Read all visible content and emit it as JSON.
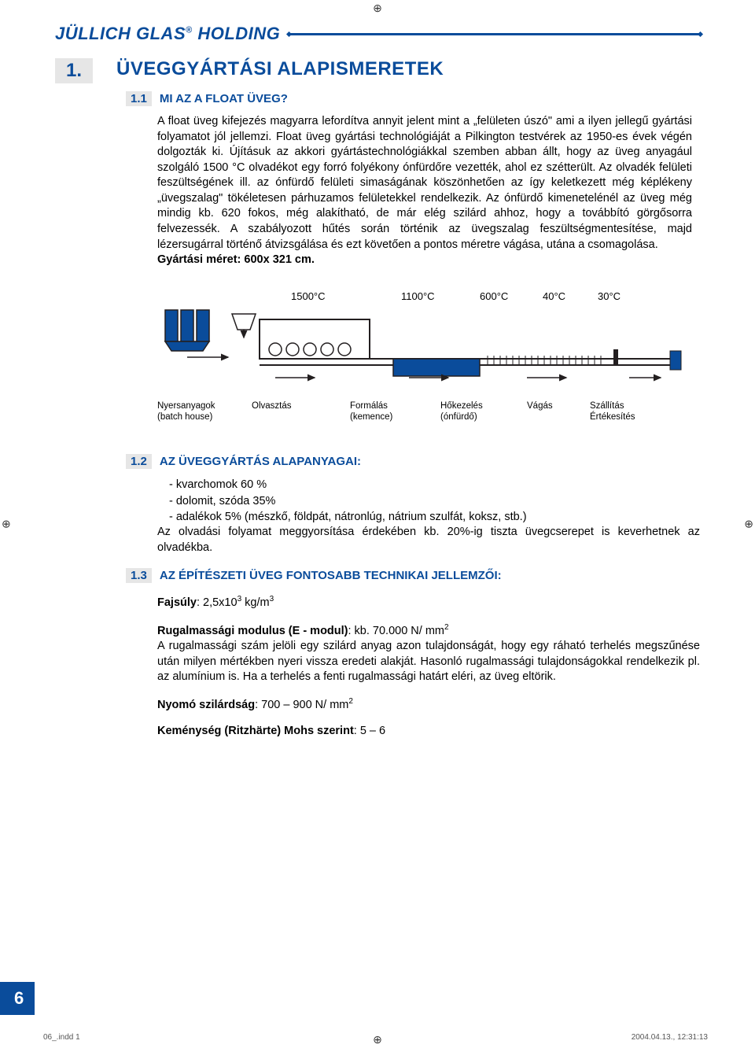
{
  "colors": {
    "brand_blue": "#0a4c9b",
    "grey_box": "#e6e6e6",
    "diagram_fill": "#0a4c9b",
    "diagram_stroke": "#000000",
    "text": "#000000",
    "bg": "#ffffff"
  },
  "header": {
    "brand": "JÜLLICH GLAS",
    "brand_sup": "®",
    "brand_suffix": " HOLDING"
  },
  "chapter": {
    "num": "1.",
    "title": "ÜVEGGYÁRTÁSI ALAPISMERETEK"
  },
  "s11": {
    "num": "1.1",
    "title": "MI AZ A FLOAT ÜVEG?",
    "para": "A float üveg kifejezés magyarra lefordítva annyit jelent mint a „felületen úszó\" ami a ilyen jellegű gyártási folyamatot jól jellemzi. Float üveg gyártási technológiáját a Pilkington testvérek az 1950-es évek végén dolgozták ki. Újításuk az akkori gyártástechnológiákkal szemben abban állt, hogy az üveg anyagául szolgáló 1500 °C olvadékot egy forró folyékony ónfürdőre vezették, ahol ez szétterült. Az olvadék felületi feszültségének ill. az ónfürdő felületi simaságának köszönhetően az így keletkezett még képlékeny „üvegszalag\" tökéletesen párhuzamos felületekkel rendelkezik. Az ónfürdő kimenetelénél az üveg még mindig kb. 620 fokos, még alakítható, de már elég szilárd ahhoz, hogy a továbbító görgősorra felvezessék. A szabályozott hűtés során történik az üvegszalag feszültségmentesítése, majd lézersugárral történő átvizsgálása és ezt követően a  pontos méretre vágása, utána a csomagolása.",
    "bold_line": "Gyártási méret: 600x 321 cm."
  },
  "diagram": {
    "type": "process-flow",
    "temps": [
      "1500°C",
      "1100°C",
      "600°C",
      "40°C",
      "30°C"
    ],
    "stages": [
      {
        "l1": "Nyersanyagok",
        "l2": "(batch house)"
      },
      {
        "l1": "Olvasztás",
        "l2": ""
      },
      {
        "l1": "Formálás",
        "l2": "(kemence)"
      },
      {
        "l1": "Hőkezelés",
        "l2": "(ónfürdő)"
      },
      {
        "l1": "Vágás",
        "l2": ""
      },
      {
        "l1": "Szállítás",
        "l2": "Értékesítés"
      }
    ],
    "label_widths": [
      120,
      125,
      115,
      110,
      80,
      80
    ],
    "colors": {
      "tank_fill": "#0a4c9b",
      "hopper_fill": "#0a4c9b",
      "outline": "#231f20"
    }
  },
  "s12": {
    "num": "1.2",
    "title": "AZ ÜVEGGYÁRTÁS ALAPANYAGAI:",
    "items": [
      "kvarchomok  60 %",
      "dolomit, szóda 35%",
      "adalékok 5% (mészkő, földpát, nátronlúg, nátrium szulfát, koksz, stb.)"
    ],
    "after": "Az olvadási folyamat meggyorsítása érdekében kb. 20%-ig tiszta üvegcserepet is keverhetnek az olvadékba."
  },
  "s13": {
    "num": "1.3",
    "title": "AZ ÉPÍTÉSZETI ÜVEG FONTOSABB TECHNIKAI JELLEMZŐI:",
    "fajsuly_label": "Fajsúly",
    "fajsuly_value": ": 2,5x10³ kg/m³",
    "emod_label": "Rugalmassági modulus (E - modul)",
    "emod_value": ": kb. 70.000 N/ mm²",
    "emod_para": "A rugalmassági szám jelöli egy szilárd anyag azon tulajdonságát, hogy egy ráható terhelés megszűnése után milyen mértékben nyeri vissza eredeti alakját. Hasonló rugalmassági tulajdonságokkal rendelkezik pl. az alumínium is. Ha a terhelés a fenti rugalmassági határt eléri, az üveg eltörik.",
    "nyomo_label": "Nyomó szilárdság",
    "nyomo_value": ": 700 – 900 N/ mm²",
    "kemeny_label": "Keménység (Ritzhärte) Mohs szerint",
    "kemeny_value": ": 5 – 6"
  },
  "page_number": "6",
  "footer": {
    "left": "06_.indd   1",
    "right": "2004.04.13., 12:31:13"
  }
}
